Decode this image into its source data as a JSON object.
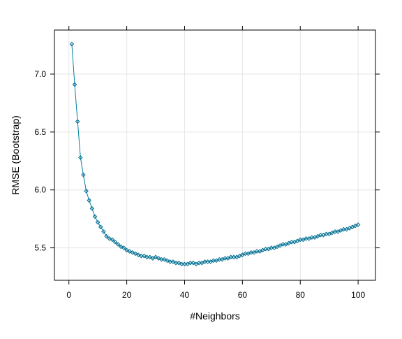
{
  "chart_data": {
    "type": "line",
    "title": "",
    "xlabel": "#Neighbors",
    "ylabel": "RMSE (Bootstrap)",
    "xlim": [
      -5,
      106
    ],
    "ylim": [
      5.22,
      7.38
    ],
    "x_ticks": [
      0,
      20,
      40,
      60,
      80,
      100
    ],
    "y_ticks": [
      5.5,
      6.0,
      6.5,
      7.0
    ],
    "x_tick_labels": [
      "0",
      "20",
      "40",
      "60",
      "80",
      "100"
    ],
    "y_tick_labels": [
      "5.5",
      "6.0",
      "6.5",
      "7.0"
    ],
    "grid": true,
    "marker": "diamond-open",
    "line_color": "#0080a0",
    "marker_color": "#006b8f",
    "grid_color": "#e6e6e6",
    "series": [
      {
        "x": [
          1,
          2,
          3,
          4,
          5,
          6,
          7,
          8,
          9,
          10,
          11,
          12,
          13,
          14,
          15,
          16,
          17,
          18,
          19,
          20,
          21,
          22,
          23,
          24,
          25,
          26,
          27,
          28,
          29,
          30,
          31,
          32,
          33,
          34,
          35,
          36,
          37,
          38,
          39,
          40,
          41,
          42,
          43,
          44,
          45,
          46,
          47,
          48,
          49,
          50,
          51,
          52,
          53,
          54,
          55,
          56,
          57,
          58,
          59,
          60,
          61,
          62,
          63,
          64,
          65,
          66,
          67,
          68,
          69,
          70,
          71,
          72,
          73,
          74,
          75,
          76,
          77,
          78,
          79,
          80,
          81,
          82,
          83,
          84,
          85,
          86,
          87,
          88,
          89,
          90,
          91,
          92,
          93,
          94,
          95,
          96,
          97,
          98,
          99,
          100
        ],
        "values": [
          7.26,
          6.91,
          6.59,
          6.28,
          6.13,
          5.99,
          5.91,
          5.84,
          5.77,
          5.72,
          5.68,
          5.64,
          5.6,
          5.58,
          5.57,
          5.55,
          5.53,
          5.51,
          5.5,
          5.48,
          5.47,
          5.46,
          5.45,
          5.44,
          5.43,
          5.43,
          5.42,
          5.42,
          5.41,
          5.42,
          5.41,
          5.4,
          5.4,
          5.39,
          5.38,
          5.38,
          5.37,
          5.37,
          5.36,
          5.36,
          5.36,
          5.37,
          5.37,
          5.36,
          5.37,
          5.37,
          5.38,
          5.38,
          5.38,
          5.39,
          5.39,
          5.4,
          5.4,
          5.41,
          5.41,
          5.42,
          5.42,
          5.42,
          5.43,
          5.44,
          5.45,
          5.45,
          5.46,
          5.46,
          5.47,
          5.47,
          5.48,
          5.49,
          5.49,
          5.5,
          5.5,
          5.51,
          5.52,
          5.53,
          5.53,
          5.54,
          5.55,
          5.55,
          5.56,
          5.57,
          5.57,
          5.58,
          5.58,
          5.59,
          5.59,
          5.6,
          5.61,
          5.61,
          5.62,
          5.62,
          5.63,
          5.64,
          5.64,
          5.65,
          5.66,
          5.66,
          5.67,
          5.68,
          5.69,
          5.7
        ]
      }
    ]
  }
}
